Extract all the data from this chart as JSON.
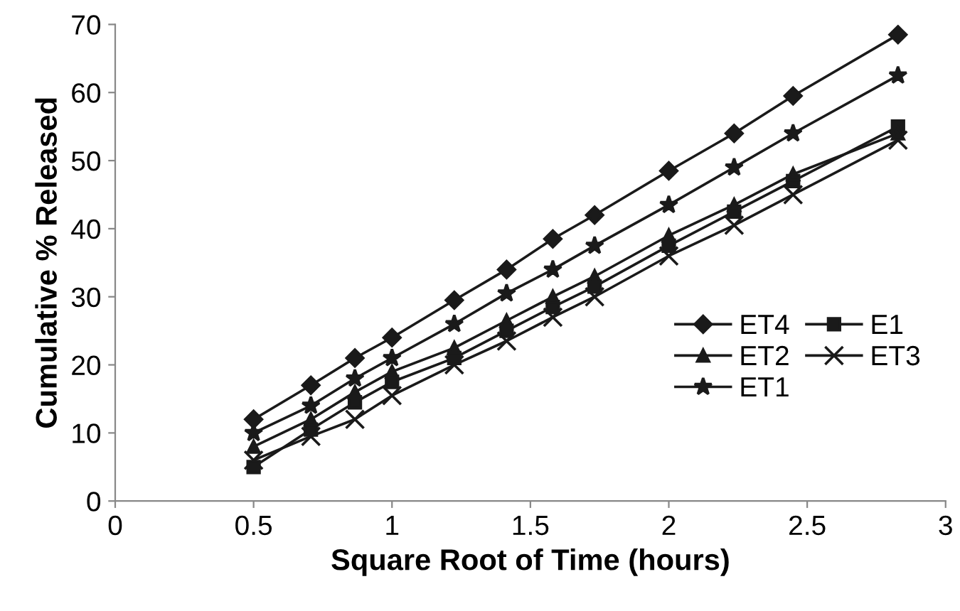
{
  "chart_data": {
    "type": "line",
    "xlabel": "Square Root of Time (hours)",
    "ylabel": "Cumulative % Released",
    "x": [
      0.5,
      0.707,
      0.866,
      1.0,
      1.225,
      1.414,
      1.581,
      1.732,
      2.0,
      2.236,
      2.449,
      2.828
    ],
    "series": [
      {
        "name": "ET4",
        "color": "#1a1a1a",
        "marker": "diamond",
        "values": [
          12,
          17,
          21,
          24,
          29.5,
          34,
          38.5,
          42,
          48.5,
          54,
          59.5,
          68.5
        ]
      },
      {
        "name": "ET2",
        "color": "#1a1a1a",
        "marker": "triangle",
        "values": [
          8,
          12,
          16,
          19,
          22.5,
          26.5,
          30,
          33,
          39,
          43.5,
          48,
          54
        ]
      },
      {
        "name": "ET1",
        "color": "#1a1a1a",
        "marker": "star",
        "values": [
          10,
          14,
          18,
          21,
          26,
          30.5,
          34,
          37.5,
          43.5,
          49,
          54,
          62.5
        ]
      },
      {
        "name": "E1",
        "color": "#1a1a1a",
        "marker": "square",
        "values": [
          5,
          10.5,
          14.5,
          17.5,
          21,
          25,
          28.5,
          31.5,
          37.5,
          42.5,
          47,
          55
        ]
      },
      {
        "name": "ET3",
        "color": "#1a1a1a",
        "marker": "cross",
        "values": [
          6,
          9.5,
          12,
          15.5,
          20,
          23.5,
          27,
          30,
          36,
          40.5,
          45,
          53
        ]
      }
    ],
    "xlim": [
      0,
      3
    ],
    "xticks": [
      0,
      0.5,
      1,
      1.5,
      2,
      2.5,
      3
    ],
    "ylim": [
      0,
      70
    ],
    "yticks": [
      0,
      10,
      20,
      30,
      40,
      50,
      60,
      70
    ],
    "grid": false,
    "legend": "right",
    "line_style": "solid"
  }
}
